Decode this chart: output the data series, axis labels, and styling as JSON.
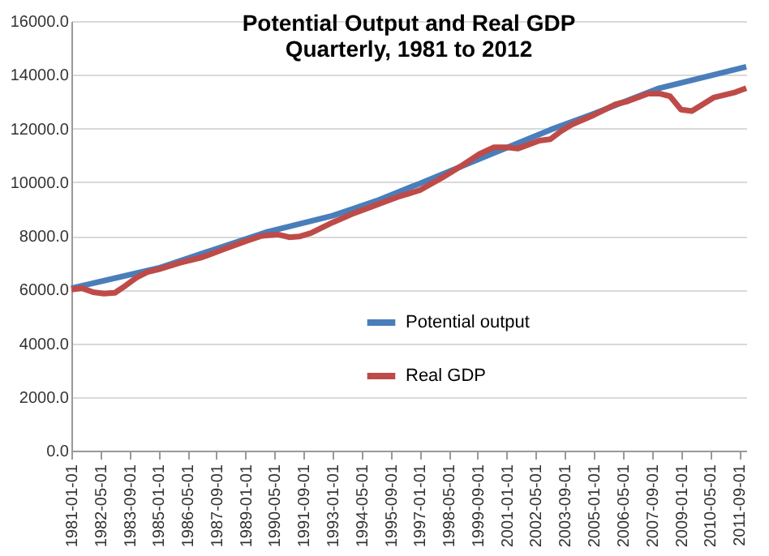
{
  "chart_data": {
    "type": "line",
    "title": "Potential Output and Real GDP\nQuarterly, 1981 to 2012",
    "series": [
      {
        "name": "Potential output",
        "color": "#4a7ebb",
        "x": [
          "1981-01-01",
          "1985-01-01",
          "1990-01-01",
          "1993-01-01",
          "1995-01-01",
          "1997-01-01",
          "2000-01-01",
          "2003-01-01",
          "2005-01-01",
          "2008-01-01",
          "2010-01-01",
          "2012-01-01"
        ],
        "values": [
          6050,
          6800,
          8150,
          8750,
          9300,
          9950,
          10950,
          11950,
          12550,
          13500,
          13900,
          14300
        ]
      },
      {
        "name": "Real GDP",
        "color": "#be4b48",
        "x": [
          "1981-01-01",
          "1981-07-01",
          "1982-01-01",
          "1982-07-01",
          "1983-01-01",
          "1983-07-01",
          "1984-01-01",
          "1984-07-01",
          "1985-01-01",
          "1986-01-01",
          "1987-01-01",
          "1988-01-01",
          "1989-01-01",
          "1989-10-01",
          "1990-07-01",
          "1991-01-01",
          "1991-07-01",
          "1992-01-01",
          "1993-01-01",
          "1994-01-01",
          "1995-01-01",
          "1996-01-01",
          "1997-01-01",
          "1998-01-01",
          "1999-01-01",
          "1999-10-01",
          "2000-06-01",
          "2001-01-01",
          "2001-07-01",
          "2002-01-01",
          "2002-07-01",
          "2003-01-01",
          "2003-07-01",
          "2004-01-01",
          "2005-01-01",
          "2006-01-01",
          "2006-07-01",
          "2007-07-01",
          "2008-01-01",
          "2008-07-01",
          "2009-01-01",
          "2009-07-01",
          "2010-01-01",
          "2010-07-01",
          "2011-01-01",
          "2011-07-01",
          "2012-01-01"
        ],
        "values": [
          6000,
          6050,
          5900,
          5850,
          5880,
          6150,
          6450,
          6650,
          6750,
          7000,
          7200,
          7500,
          7800,
          8000,
          8050,
          7950,
          7980,
          8100,
          8500,
          8850,
          9150,
          9450,
          9700,
          10150,
          10650,
          11050,
          11300,
          11300,
          11250,
          11400,
          11550,
          11600,
          11900,
          12150,
          12500,
          12900,
          13000,
          13300,
          13300,
          13200,
          12700,
          12650,
          12900,
          13150,
          13250,
          13350,
          13500
        ]
      }
    ],
    "xlim": [
      "1981-01-01",
      "2012-01-01"
    ],
    "xticks": [
      "1981-01-01",
      "1982-05-01",
      "1983-09-01",
      "1985-01-01",
      "1986-05-01",
      "1987-09-01",
      "1989-01-01",
      "1990-05-01",
      "1991-09-01",
      "1993-01-01",
      "1994-05-01",
      "1995-09-01",
      "1997-01-01",
      "1998-05-01",
      "1999-09-01",
      "2001-01-01",
      "2002-05-01",
      "2003-09-01",
      "2005-01-01",
      "2006-05-01",
      "2007-09-01",
      "2009-01-01",
      "2010-05-01",
      "2011-09-01"
    ],
    "ylim": [
      0,
      16000
    ],
    "yticks": [
      {
        "value": 0,
        "label": "0.0"
      },
      {
        "value": 2000,
        "label": "2000.0"
      },
      {
        "value": 4000,
        "label": "4000.0"
      },
      {
        "value": 6000,
        "label": "6000.0"
      },
      {
        "value": 8000,
        "label": "8000.0"
      },
      {
        "value": 10000,
        "label": "10000.0"
      },
      {
        "value": 12000,
        "label": "12000.0"
      },
      {
        "value": 14000,
        "label": "14000.0"
      },
      {
        "value": 16000,
        "label": "16000.0"
      }
    ],
    "grid": "y",
    "legend": "bottom",
    "marker": "none",
    "line_style": "solid"
  }
}
